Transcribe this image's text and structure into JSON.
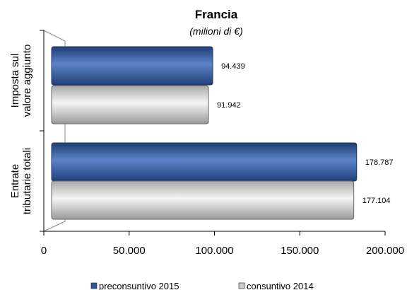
{
  "chart_data": {
    "type": "bar",
    "orientation": "horizontal",
    "title": "Francia",
    "subtitle": "(milioni di €)",
    "categories": [
      "Imposta sul valore aggiunto",
      "Entrate tributarie totali"
    ],
    "category_lines": [
      [
        "Imposta sul",
        "valore aggiunto"
      ],
      [
        "Entrate",
        "tributarie totali"
      ]
    ],
    "series": [
      {
        "name": "preconsuntivo 2015",
        "values": [
          94439,
          178787
        ],
        "labels": [
          "94.439",
          "178.787"
        ],
        "color": "#2f5597"
      },
      {
        "name": "consuntivo 2014",
        "values": [
          91942,
          177104
        ],
        "labels": [
          "91.942",
          "177.104"
        ],
        "color": "#d4d4d4"
      }
    ],
    "xlim": [
      0,
      200000
    ],
    "xticks": [
      0,
      50000,
      100000,
      150000,
      200000
    ],
    "xtick_labels": [
      "0",
      "50.000",
      "100.000",
      "150.000",
      "200.000"
    ],
    "grid": false,
    "legend_position": "bottom"
  }
}
